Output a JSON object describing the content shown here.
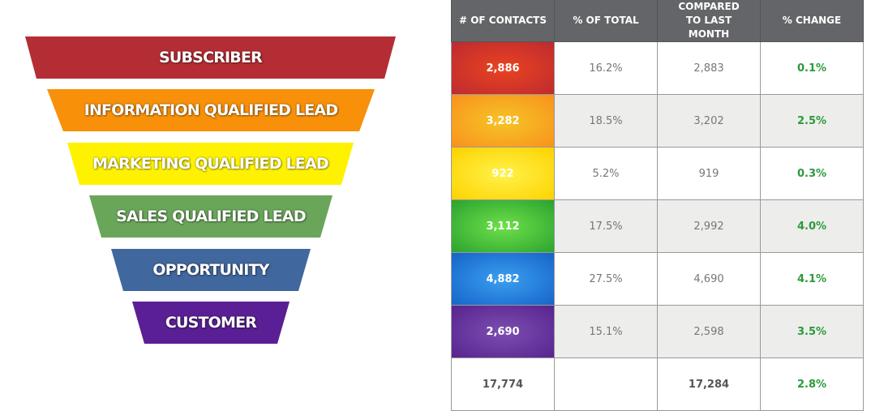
{
  "funnel": [
    {
      "label": "SUBSCRIBER",
      "color": "#b52d34"
    },
    {
      "label": "INFORMATION QUALIFIED LEAD",
      "color": "#f89009"
    },
    {
      "label": "MARKETING QUALIFIED LEAD",
      "color": "#fff200"
    },
    {
      "label": "SALES QUALIFIED LEAD",
      "color": "#6aa65a"
    },
    {
      "label": "OPPORTUNITY",
      "color": "#41679f"
    },
    {
      "label": "CUSTOMER",
      "color": "#5a1f94"
    }
  ],
  "table": {
    "headers": [
      "# OF CONTACTS",
      "% OF TOTAL",
      "COMPARED TO LAST MONTH",
      "% CHANGE"
    ],
    "rows": [
      {
        "contacts": "2,886",
        "pct_total": "16.2%",
        "last_month": "2,883",
        "change": "0.1%",
        "inner": "#ea4420",
        "outer": "#bd2a30"
      },
      {
        "contacts": "3,282",
        "pct_total": "18.5%",
        "last_month": "3,202",
        "change": "2.5%",
        "inner": "#f6c526",
        "outer": "#f8911d"
      },
      {
        "contacts": "922",
        "pct_total": "5.2%",
        "last_month": "919",
        "change": "0.3%",
        "inner": "#fff24a",
        "outer": "#fdd200"
      },
      {
        "contacts": "3,112",
        "pct_total": "17.5%",
        "last_month": "2,992",
        "change": "4.0%",
        "inner": "#6ee04a",
        "outer": "#2aa32f"
      },
      {
        "contacts": "4,882",
        "pct_total": "27.5%",
        "last_month": "4,690",
        "change": "4.1%",
        "inner": "#3a9ff0",
        "outer": "#1664c8"
      },
      {
        "contacts": "2,690",
        "pct_total": "15.1%",
        "last_month": "2,598",
        "change": "3.5%",
        "inner": "#7b4fb0",
        "outer": "#58238f"
      }
    ],
    "total": {
      "contacts": "17,774",
      "pct_total": "",
      "last_month": "17,284",
      "change": "2.8%"
    }
  }
}
